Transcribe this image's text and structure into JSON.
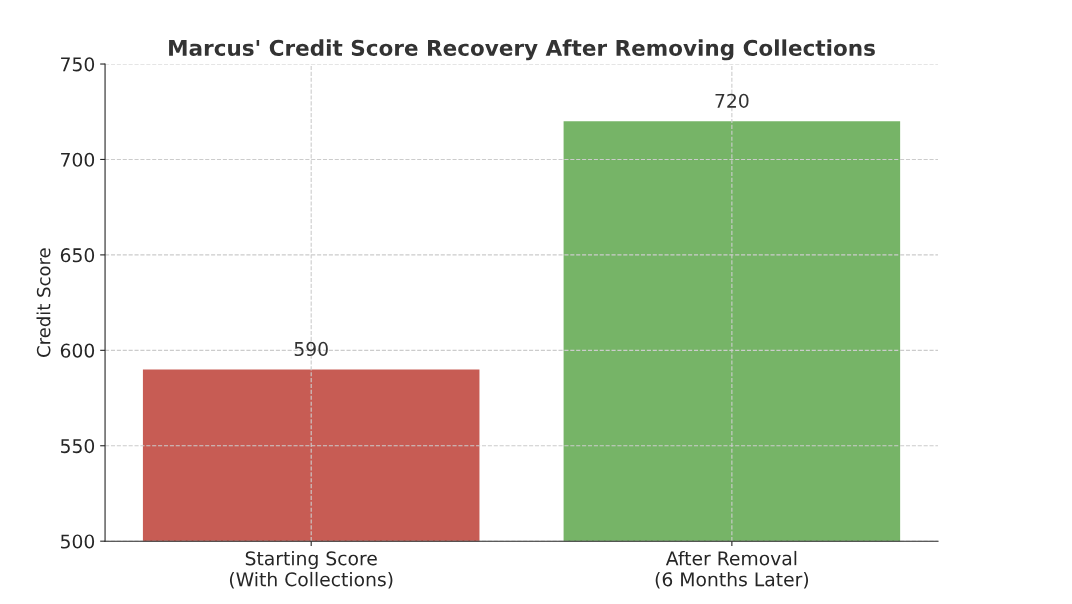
{
  "chart_data": {
    "type": "bar",
    "title": "Marcus' Credit Score Recovery After Removing Collections",
    "ylabel": "Credit Score",
    "categories": [
      "Starting Score\n(With Collections)",
      "After Removal\n(6 Months Later)"
    ],
    "values": [
      590,
      720
    ],
    "colors": [
      "#c75c54",
      "#76b467"
    ],
    "ylim": [
      500,
      750
    ],
    "yticks": [
      500,
      550,
      600,
      650,
      700,
      750
    ],
    "grid": true,
    "line_style": "dashed",
    "data_labels": true
  }
}
